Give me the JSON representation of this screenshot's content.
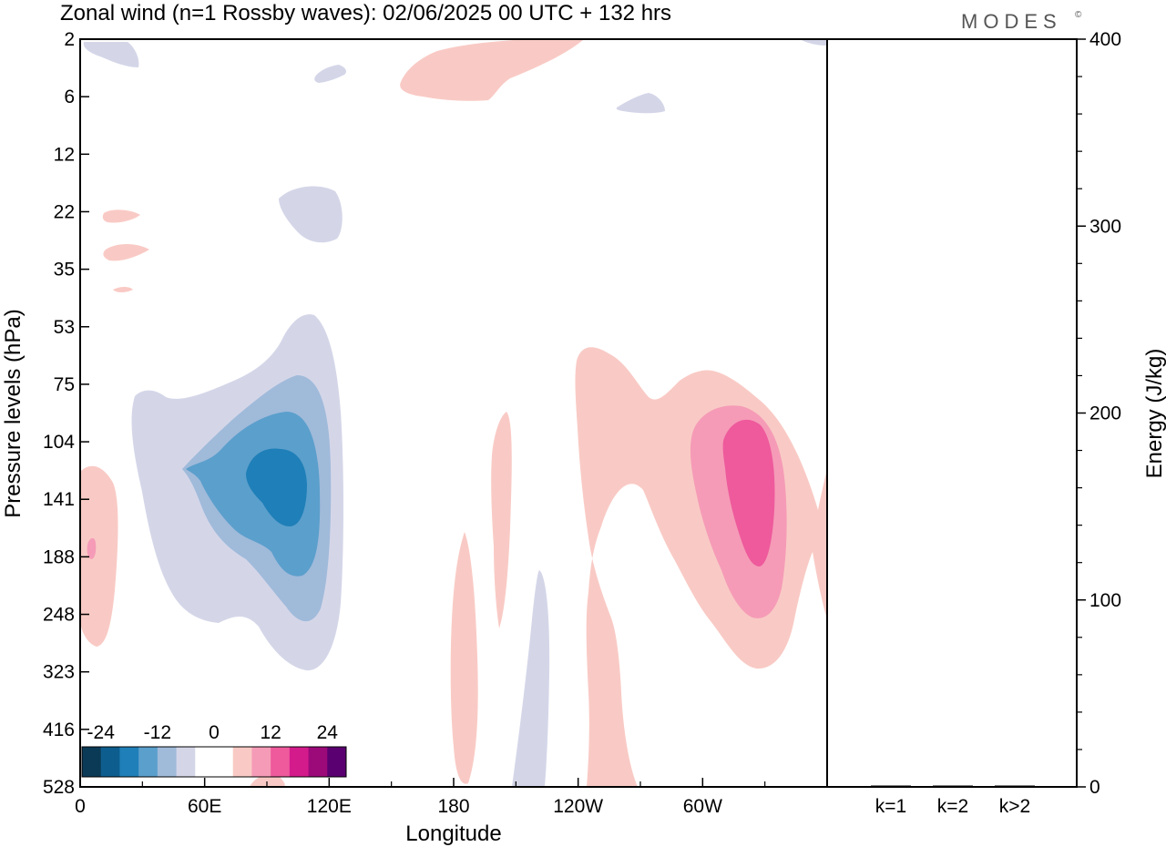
{
  "header": {
    "title": "Zonal wind (n=1 Rossby waves):  02/06/2025  00 UTC  + 132 hrs",
    "brand": "MODES",
    "brand_mark": "©"
  },
  "chart_data": [
    {
      "type": "heatmap",
      "xlabel": "Longitude",
      "ylabel": "Pressure levels (hPa)",
      "x_ticks": [
        "0",
        "60E",
        "120E",
        "180",
        "120W",
        "60W"
      ],
      "y_ticks": [
        "2",
        "6",
        "12",
        "22",
        "35",
        "53",
        "75",
        "104",
        "141",
        "188",
        "248",
        "323",
        "416",
        "528"
      ],
      "xlim": [
        0,
        360
      ],
      "ylim": [
        528,
        2
      ],
      "colorbar": {
        "tick_labels": [
          "-24",
          "-12",
          "0",
          "12",
          "24"
        ],
        "colors": [
          "#0b3a57",
          "#0d5e8e",
          "#1f7fb8",
          "#5b9fcc",
          "#a0bada",
          "#d4d6e8",
          "#ffffff",
          "#ffffff",
          "#f9cac5",
          "#f59bb7",
          "#ee5a9c",
          "#d41b8c",
          "#9c0a7a",
          "#5a0070"
        ]
      },
      "contours": [
        {
          "level": -3,
          "color": "#d4d6e8"
        },
        {
          "level": -6,
          "color": "#a0bada"
        },
        {
          "level": -9,
          "color": "#5b9fcc"
        },
        {
          "level": -12,
          "color": "#1f7fb8"
        },
        {
          "level": 3,
          "color": "#f9cac5"
        },
        {
          "level": 6,
          "color": "#f59bb7"
        },
        {
          "level": 9,
          "color": "#ee5a9c"
        }
      ]
    },
    {
      "type": "bar",
      "categories": [
        "k=1",
        "k=2",
        "k>2"
      ],
      "values": [
        0.5,
        0.3,
        0.3
      ],
      "ylabel": "Energy (J/kg)",
      "y_ticks": [
        "0",
        "100",
        "200",
        "300",
        "400"
      ],
      "ylim": [
        0,
        400
      ]
    }
  ]
}
